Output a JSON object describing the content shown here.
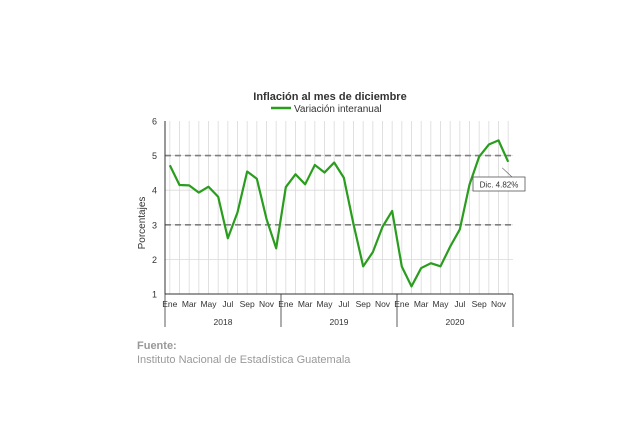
{
  "chart_data": {
    "type": "line",
    "title": "Inflación al mes de diciembre",
    "ylabel": "Porcentajes",
    "xlabel": "",
    "ylim": [
      1,
      6
    ],
    "yticks": [
      "1",
      "2",
      "3",
      "4",
      "5",
      "6"
    ],
    "grid": true,
    "legend": "top-center",
    "reference_lines": [
      3,
      5
    ],
    "month_labels": [
      "Ene",
      "Mar",
      "May",
      "Jul",
      "Sep",
      "Nov"
    ],
    "years": [
      "2018",
      "2019",
      "2020"
    ],
    "series": [
      {
        "name": "Variación interanual",
        "color": "#2a9d1e",
        "values": [
          4.72,
          4.15,
          4.14,
          3.93,
          4.1,
          3.81,
          2.61,
          3.36,
          4.54,
          4.33,
          3.17,
          2.32,
          4.09,
          4.46,
          4.17,
          4.73,
          4.51,
          4.8,
          4.36,
          3.02,
          1.8,
          2.21,
          2.94,
          3.4,
          1.79,
          1.22,
          1.75,
          1.89,
          1.8,
          2.37,
          2.87,
          4.16,
          4.97,
          5.32,
          5.44,
          4.82
        ]
      }
    ],
    "annotation": {
      "text": "Dic. 4.82%",
      "index": 35
    }
  },
  "source": {
    "label": "Fuente:",
    "text": "Instituto Nacional de Estadística Guatemala"
  }
}
